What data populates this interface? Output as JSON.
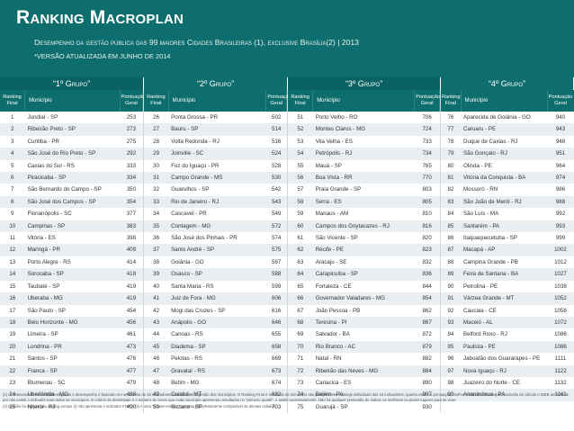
{
  "header": {
    "title": "Ranking Macroplan",
    "subtitle": "Desempenho da gestão pública das 99 maiores Cidades Brasileiras (1), exclusive Brasília(2) | 2013",
    "note": "*VERSÃO ATUALIZADA EM JUNHO DE 2014"
  },
  "colors": {
    "header_bg": "#0e6d6d",
    "row_alt": "#e8eef2"
  },
  "column_labels": {
    "rank": "Ranking Final",
    "municipio": "Município",
    "score": "Pontuação Geral"
  },
  "groups": [
    {
      "label": "“1º Grupo”",
      "rows": [
        {
          "rank": "1",
          "municipio": "Jundiaí - SP",
          "score": "253"
        },
        {
          "rank": "2",
          "municipio": "Ribeirão Preto - SP",
          "score": "273"
        },
        {
          "rank": "3",
          "municipio": "Curitiba - PR",
          "score": "275"
        },
        {
          "rank": "4",
          "municipio": "São José do Rio Preto - SP",
          "score": "292"
        },
        {
          "rank": "5",
          "municipio": "Caxias do Sul - RS",
          "score": "333"
        },
        {
          "rank": "6",
          "municipio": "Piracicaba - SP",
          "score": "334"
        },
        {
          "rank": "7",
          "municipio": "São Bernardo do Campo - SP",
          "score": "350"
        },
        {
          "rank": "8",
          "municipio": "São José dos Campos - SP",
          "score": "354"
        },
        {
          "rank": "9",
          "municipio": "Florianópolis - SC",
          "score": "377"
        },
        {
          "rank": "10",
          "municipio": "Campinas - SP",
          "score": "383"
        },
        {
          "rank": "11",
          "municipio": "Vitória - ES",
          "score": "398"
        },
        {
          "rank": "12",
          "municipio": "Maringá - PR",
          "score": "409"
        },
        {
          "rank": "13",
          "municipio": "Porto Alegre - RS",
          "score": "414"
        },
        {
          "rank": "14",
          "municipio": "Sorocaba - SP",
          "score": "418"
        },
        {
          "rank": "15",
          "municipio": "Taubaté - SP",
          "score": "419"
        },
        {
          "rank": "16",
          "municipio": "Uberaba - MG",
          "score": "419"
        },
        {
          "rank": "17",
          "municipio": "São Paulo - SP",
          "score": "454"
        },
        {
          "rank": "18",
          "municipio": "Belo Horizonte - MG",
          "score": "456"
        },
        {
          "rank": "19",
          "municipio": "Limeira - SP",
          "score": "461"
        },
        {
          "rank": "20",
          "municipio": "Londrina - PR",
          "score": "473"
        },
        {
          "rank": "21",
          "municipio": "Santos - SP",
          "score": "476"
        },
        {
          "rank": "22",
          "municipio": "Franca - SP",
          "score": "477"
        },
        {
          "rank": "23",
          "municipio": "Blumenau - SC",
          "score": "479"
        },
        {
          "rank": "24",
          "municipio": "Uberlândia - MG",
          "score": "488"
        },
        {
          "rank": "25",
          "municipio": "Niterói - RJ",
          "score": "490"
        }
      ]
    },
    {
      "label": "“2º Grupo”",
      "rows": [
        {
          "rank": "26",
          "municipio": "Ponta Grossa - PR",
          "score": "502"
        },
        {
          "rank": "27",
          "municipio": "Bauru - SP",
          "score": "514"
        },
        {
          "rank": "28",
          "municipio": "Volta Redonda - RJ",
          "score": "516"
        },
        {
          "rank": "29",
          "municipio": "Joinville - SC",
          "score": "524"
        },
        {
          "rank": "30",
          "municipio": "Foz do Iguaçu - PR",
          "score": "528"
        },
        {
          "rank": "31",
          "municipio": "Campo Grande - MS",
          "score": "530"
        },
        {
          "rank": "32",
          "municipio": "Guarulhos - SP",
          "score": "542"
        },
        {
          "rank": "33",
          "municipio": "Rio de Janeiro - RJ",
          "score": "543"
        },
        {
          "rank": "34",
          "municipio": "Cascavel - PR",
          "score": "549"
        },
        {
          "rank": "35",
          "municipio": "Contagem - MG",
          "score": "572"
        },
        {
          "rank": "36",
          "municipio": "São José dos Pinhais - PR",
          "score": "574"
        },
        {
          "rank": "37",
          "municipio": "Santo André - SP",
          "score": "575"
        },
        {
          "rank": "38",
          "municipio": "Goiânia - GO",
          "score": "587"
        },
        {
          "rank": "39",
          "municipio": "Osasco - SP",
          "score": "588"
        },
        {
          "rank": "40",
          "municipio": "Santa Maria - RS",
          "score": "599"
        },
        {
          "rank": "41",
          "municipio": "Juiz de Fora - MG",
          "score": "606"
        },
        {
          "rank": "42",
          "municipio": "Mogi das Cruzes - SP",
          "score": "616"
        },
        {
          "rank": "43",
          "municipio": "Anápolis - GO",
          "score": "646"
        },
        {
          "rank": "44",
          "municipio": "Canoas - RS",
          "score": "655"
        },
        {
          "rank": "45",
          "municipio": "Diadema - SP",
          "score": "658"
        },
        {
          "rank": "46",
          "municipio": "Pelotas - RS",
          "score": "669"
        },
        {
          "rank": "47",
          "municipio": "Gravataí - RS",
          "score": "673"
        },
        {
          "rank": "48",
          "municipio": "Betim - MG",
          "score": "674"
        },
        {
          "rank": "49",
          "municipio": "Cuiabá - MT",
          "score": "682"
        },
        {
          "rank": "50",
          "municipio": "Suzano - SP",
          "score": "703"
        }
      ]
    },
    {
      "label": "“3º Grupo”",
      "rows": [
        {
          "rank": "51",
          "municipio": "Porto Velho - RO",
          "score": "706"
        },
        {
          "rank": "52",
          "municipio": "Montes Claros - MG",
          "score": "724"
        },
        {
          "rank": "53",
          "municipio": "Vila Velha - ES",
          "score": "733"
        },
        {
          "rank": "54",
          "municipio": "Petrópolis - RJ",
          "score": "734"
        },
        {
          "rank": "55",
          "municipio": "Mauá - SP",
          "score": "765"
        },
        {
          "rank": "56",
          "municipio": "Boa Vista - RR",
          "score": "770"
        },
        {
          "rank": "57",
          "municipio": "Praia Grande - SP",
          "score": "803"
        },
        {
          "rank": "58",
          "municipio": "Serra - ES",
          "score": "805"
        },
        {
          "rank": "59",
          "municipio": "Manaus - AM",
          "score": "810"
        },
        {
          "rank": "60",
          "municipio": "Campos dos Goytacazes - RJ",
          "score": "816"
        },
        {
          "rank": "61",
          "municipio": "São Vicente - SP",
          "score": "820"
        },
        {
          "rank": "62",
          "municipio": "Recife - PE",
          "score": "823"
        },
        {
          "rank": "63",
          "municipio": "Aracaju - SE",
          "score": "832"
        },
        {
          "rank": "64",
          "municipio": "Carapicuíba - SP",
          "score": "836"
        },
        {
          "rank": "65",
          "municipio": "Fortaleza - CE",
          "score": "844"
        },
        {
          "rank": "66",
          "municipio": "Governador Valadares - MG",
          "score": "854"
        },
        {
          "rank": "67",
          "municipio": "João Pessoa - PB",
          "score": "862"
        },
        {
          "rank": "68",
          "municipio": "Teresina - PI",
          "score": "867"
        },
        {
          "rank": "69",
          "municipio": "Salvador - BA",
          "score": "872"
        },
        {
          "rank": "70",
          "municipio": "Rio Branco - AC",
          "score": "879"
        },
        {
          "rank": "71",
          "municipio": "Natal - RN",
          "score": "882"
        },
        {
          "rank": "72",
          "municipio": "Ribeirão das Neves - MG",
          "score": "884"
        },
        {
          "rank": "73",
          "municipio": "Cariacica - ES",
          "score": "890"
        },
        {
          "rank": "74",
          "municipio": "Belém - PA",
          "score": "907"
        },
        {
          "rank": "75",
          "municipio": "Guarujá - SP",
          "score": "930"
        }
      ]
    },
    {
      "label": "“4º Grupo”",
      "rows": [
        {
          "rank": "76",
          "municipio": "Aparecida de Goiânia - GO",
          "score": "940"
        },
        {
          "rank": "77",
          "municipio": "Caruaru - PE",
          "score": "943"
        },
        {
          "rank": "78",
          "municipio": "Duque de Caxias - RJ",
          "score": "948"
        },
        {
          "rank": "79",
          "municipio": "São Gonçalo - RJ",
          "score": "951"
        },
        {
          "rank": "80",
          "municipio": "Olinda - PE",
          "score": "964"
        },
        {
          "rank": "81",
          "municipio": "Vitória da Conquista - BA",
          "score": "974"
        },
        {
          "rank": "82",
          "municipio": "Mossoró - RN",
          "score": "986"
        },
        {
          "rank": "83",
          "municipio": "São João de Meriti - RJ",
          "score": "988"
        },
        {
          "rank": "84",
          "municipio": "São Luís - MA",
          "score": "992"
        },
        {
          "rank": "85",
          "municipio": "Santarém - PA",
          "score": "993"
        },
        {
          "rank": "86",
          "municipio": "Itaquaquecetuba - SP",
          "score": "999"
        },
        {
          "rank": "87",
          "municipio": "Macapá - AP",
          "score": "1002"
        },
        {
          "rank": "88",
          "municipio": "Campina Grande - PB",
          "score": "1012"
        },
        {
          "rank": "89",
          "municipio": "Feira de Santana - BA",
          "score": "1027"
        },
        {
          "rank": "90",
          "municipio": "Petrolina - PE",
          "score": "1038"
        },
        {
          "rank": "91",
          "municipio": "Várzea Grande - MT",
          "score": "1052"
        },
        {
          "rank": "92",
          "municipio": "Caucaia - CE",
          "score": "1058"
        },
        {
          "rank": "93",
          "municipio": "Maceió - AL",
          "score": "1072"
        },
        {
          "rank": "94",
          "municipio": "Belford Roxo - RJ",
          "score": "1086"
        },
        {
          "rank": "95",
          "municipio": "Paulista - PE",
          "score": "1086"
        },
        {
          "rank": "96",
          "municipio": "Jaboatão dos Guararapes - PE",
          "score": "1111"
        },
        {
          "rank": "97",
          "municipio": "Nova Iguaçu - RJ",
          "score": "1122"
        },
        {
          "rank": "98",
          "municipio": "Juazeiro do Norte - CE",
          "score": "1132"
        },
        {
          "rank": "99",
          "municipio": "Ananindeua - PA",
          "score": "1141"
        },
        {
          "rank": "",
          "municipio": "",
          "score": ""
        }
      ]
    }
  ],
  "footnotes": [
    "(1) O ordenamento das cidades segundo o desempenho é baseado em uma cesta de 16 indicadores relacionados à gestão dos municípios. O Ranking Final é resultado do somatório das posições nos rankings individuais dos 16 indicadores; quanto menor a pontuação, melhor colocado o município. Exclusão do cálculo o IDEB anos finais, por não existir o indicador para todos os municípios. O critério de desempate é o número de vezes que cada município apresentou resultados no \"primeiro quartil\", e assim sucessivamente. Não há qualquer pretensão de indicar os melhores ou piores lugares para se viver.",
    "(2) Brasília foi excluída do ranking porque (i) não apresenta o indicador FNP; e (ii) é uma \"cidade-estado\", portanto não plenamente comparável às demais cidades."
  ]
}
